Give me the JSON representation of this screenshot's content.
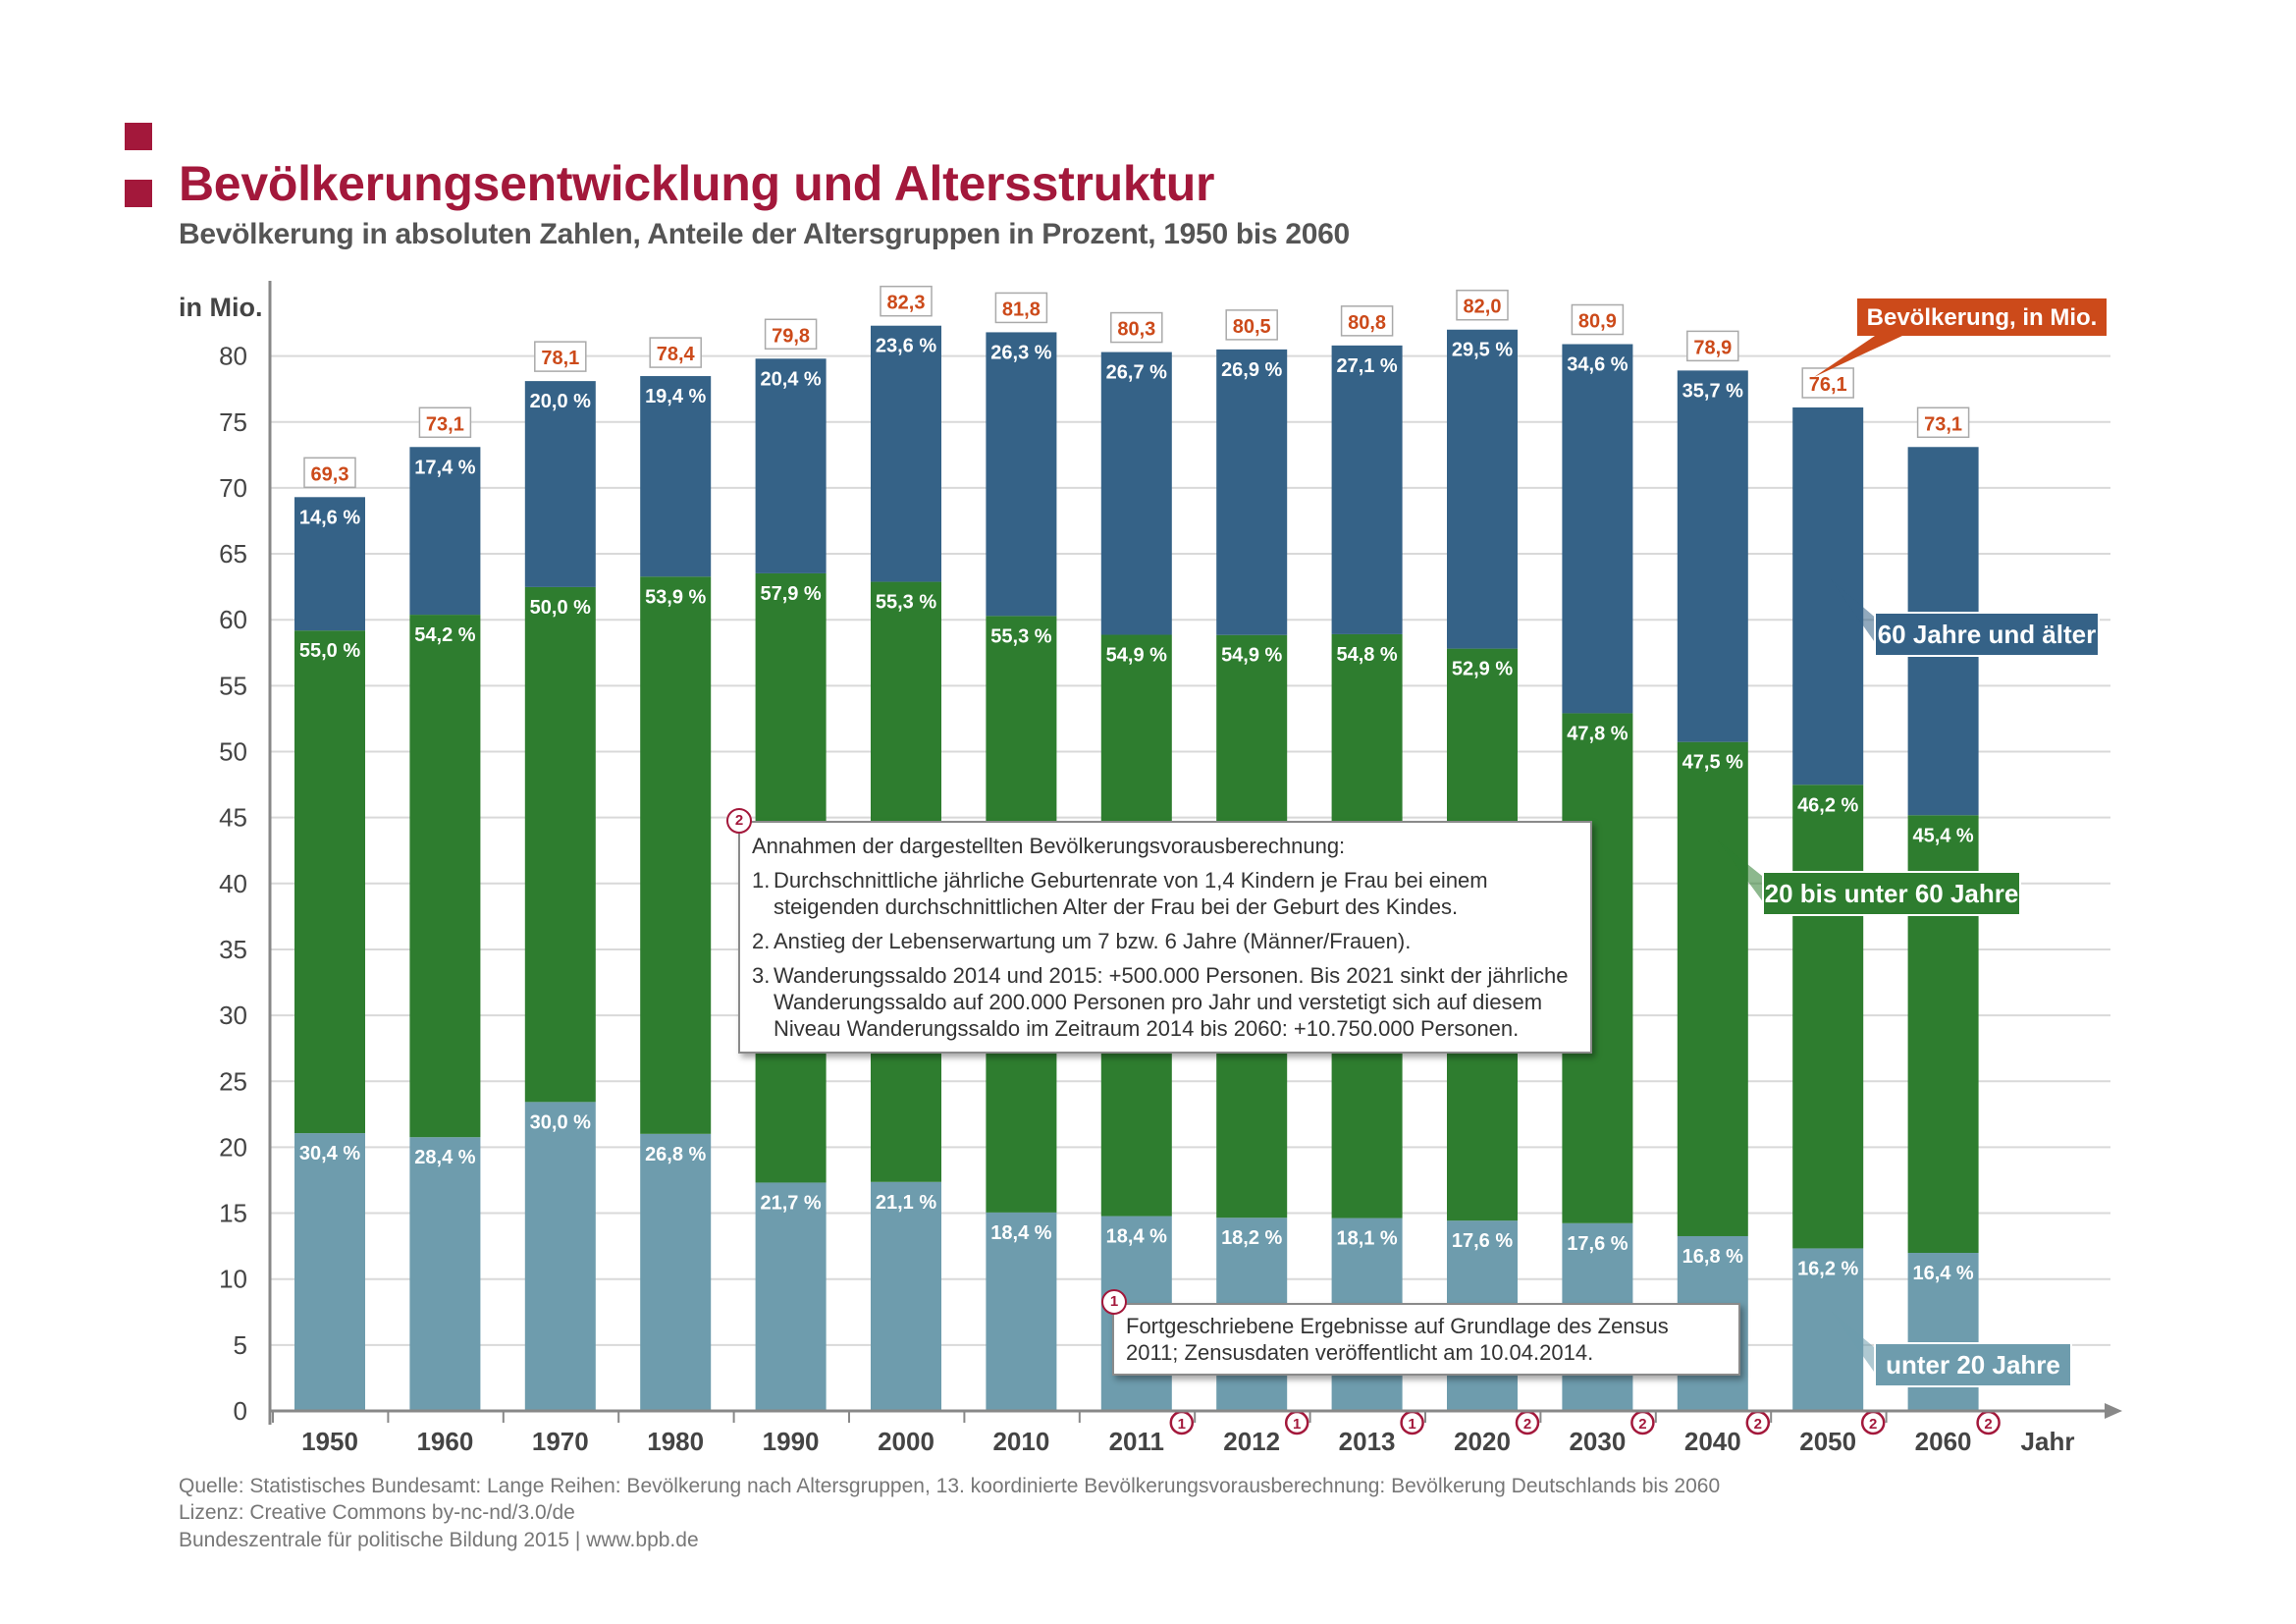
{
  "header": {
    "title": "Bevölkerungsentwicklung und Altersstruktur",
    "subtitle": "Bevölkerung in absoluten Zahlen, Anteile der Altersgruppen in Prozent, 1950 bis 2060"
  },
  "colors": {
    "brand": "#a3183b",
    "senior": "#356287",
    "adult": "#2e7d2f",
    "young": "#6e9cad",
    "total_label": "#cc4a1a",
    "axis": "#888888",
    "grid": "#d9d9d9"
  },
  "chart_data": {
    "type": "bar",
    "stacked": true,
    "categories": [
      "1950",
      "1960",
      "1970",
      "1980",
      "1990",
      "2000",
      "2010",
      "2011",
      "2012",
      "2013",
      "2020",
      "2030",
      "2040",
      "2050",
      "2060"
    ],
    "category_notes": [
      "",
      "",
      "",
      "",
      "",
      "",
      "",
      "1",
      "1",
      "1",
      "2",
      "2",
      "2",
      "2",
      "2"
    ],
    "totals": [
      69.3,
      73.1,
      78.1,
      78.4,
      79.8,
      82.3,
      81.8,
      80.3,
      80.5,
      80.8,
      82.0,
      80.9,
      78.9,
      76.1,
      73.1
    ],
    "total_labels": [
      "69,3",
      "73,1",
      "78,1",
      "78,4",
      "79,8",
      "82,3",
      "81,8",
      "80,3",
      "80,5",
      "80,8",
      "82,0",
      "80,9",
      "78,9",
      "76,1",
      "73,1"
    ],
    "series": [
      {
        "name": "unter 20 Jahre",
        "key": "young",
        "shares": [
          30.4,
          28.4,
          30.0,
          26.8,
          21.7,
          21.1,
          18.4,
          18.4,
          18.2,
          18.1,
          17.6,
          17.6,
          16.8,
          16.2,
          16.4
        ],
        "labels": [
          "30,4 %",
          "28,4 %",
          "30,0 %",
          "26,8 %",
          "21,7 %",
          "21,1 %",
          "18,4 %",
          "18,4 %",
          "18,2 %",
          "18,1 %",
          "17,6 %",
          "17,6 %",
          "16,8 %",
          "16,2 %",
          "16,4 %"
        ]
      },
      {
        "name": "20 bis unter 60 Jahre",
        "key": "adult",
        "shares": [
          55.0,
          54.2,
          50.0,
          53.9,
          57.9,
          55.3,
          55.3,
          54.9,
          54.9,
          54.8,
          52.9,
          47.8,
          47.5,
          46.2,
          45.4
        ],
        "labels": [
          "55,0 %",
          "54,2 %",
          "50,0 %",
          "53,9 %",
          "57,9 %",
          "55,3 %",
          "55,3 %",
          "54,9 %",
          "54,9 %",
          "54,8 %",
          "52,9 %",
          "47,8 %",
          "47,5 %",
          "46,2 %",
          "45,4 %"
        ]
      },
      {
        "name": "60 Jahre und älter",
        "key": "senior",
        "shares": [
          14.6,
          17.4,
          20.0,
          19.4,
          20.4,
          23.6,
          26.3,
          26.7,
          26.9,
          27.1,
          29.5,
          34.6,
          35.7,
          null,
          null
        ],
        "labels": [
          "14,6 %",
          "17,4 %",
          "20,0 %",
          "19,4 %",
          "20,4 %",
          "23,6 %",
          "26,3 %",
          "26,7 %",
          "26,9 %",
          "27,1 %",
          "29,5 %",
          "34,6 %",
          "35,7 %",
          "",
          ""
        ]
      }
    ],
    "ylabel": "in Mio.",
    "xlabel": "Jahr",
    "ylim": [
      0,
      80
    ],
    "yticks": [
      0,
      5,
      10,
      15,
      20,
      25,
      30,
      35,
      40,
      45,
      50,
      55,
      60,
      65,
      70,
      75,
      80
    ],
    "grid": true,
    "legend_labels": {
      "total": "Bevölkerung, in Mio.",
      "senior": "60 Jahre und älter",
      "adult": "20 bis unter 60 Jahre",
      "young": "unter 20 Jahre"
    }
  },
  "notes": {
    "note1_marker": "1",
    "note1": "Fortgeschriebene Ergebnisse auf Grundlage des Zensus 2011; Zensusdaten veröffentlicht am 10.04.2014.",
    "note2_marker": "2",
    "note2_header": "Annahmen der dargestellten Bevölkerungsvorausberechnung:",
    "note2_items": [
      {
        "num": "1.",
        "text": "Durchschnittliche jährliche Geburtenrate von 1,4 Kindern je Frau bei einem steigenden durchschnittlichen Alter der Frau bei der Geburt des Kindes."
      },
      {
        "num": "2.",
        "text": "Anstieg der Lebenserwartung um 7 bzw. 6 Jahre (Männer/Frauen)."
      },
      {
        "num": "3.",
        "text": "Wanderungssaldo 2014 und 2015: +500.000 Personen. Bis 2021 sinkt der jährliche Wanderungssaldo auf 200.000 Personen pro Jahr und verstetigt sich auf diesem Niveau Wanderungssaldo im Zeitraum 2014 bis 2060: +10.750.000 Personen."
      }
    ]
  },
  "footer": {
    "source": "Quelle: Statistisches Bundesamt: Lange Reihen: Bevölkerung nach Altersgruppen, 13. koordinierte Bevölkerungsvorausberechnung: Bevölkerung Deutschlands bis 2060",
    "license": "Lizenz: Creative Commons by-nc-nd/3.0/de",
    "publisher": "Bundeszentrale für politische Bildung 2015 | www.bpb.de"
  }
}
